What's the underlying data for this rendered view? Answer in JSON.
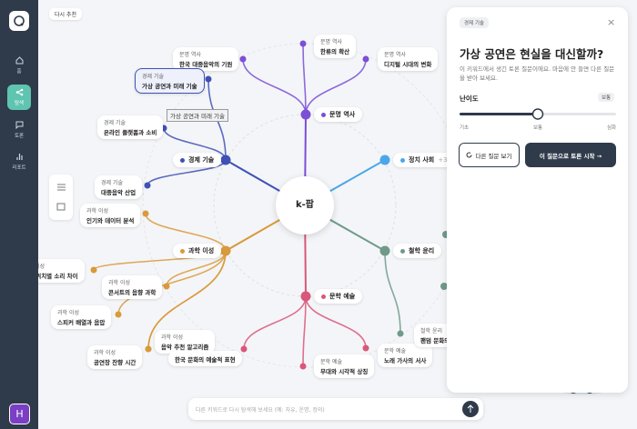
{
  "sidebar": {
    "items": [
      "홈",
      "탐색",
      "토론",
      "리포트"
    ],
    "avatar": "H"
  },
  "toolbar": {
    "recommend": "다시 추천"
  },
  "map": {
    "center": "k-팝",
    "branches": [
      "문명 역사",
      "정치 사회",
      "철학 윤리",
      "문학 예술",
      "과학 이성",
      "경제 기술"
    ],
    "more": "+3",
    "tooltip": "가상 공연과 미래 기술",
    "leaves": [
      {
        "category": "문명 역사",
        "title": "한국 대중음악의 기원"
      },
      {
        "category": "문명 역사",
        "title": "한류의 확산"
      },
      {
        "category": "문명 역사",
        "title": "디지털 시대의 변화"
      },
      {
        "category": "경제 기술",
        "title": "가상 공연과 미래 기술"
      },
      {
        "category": "경제 기술",
        "title": "온라인 플랫폼과 소비"
      },
      {
        "category": "경제 기술",
        "title": "대중음악 산업"
      },
      {
        "category": "과학 이성",
        "title": "인기와 데이터 분석"
      },
      {
        "category": "과학 이성",
        "title": "녹음 위치별 소리 차이"
      },
      {
        "category": "과학 이성",
        "title": "콘서트의 음향 과학"
      },
      {
        "category": "과학 이성",
        "title": "스피커 배열과 음압"
      },
      {
        "category": "과학 이성",
        "title": "음악 추천 알고리즘"
      },
      {
        "category": "과학 이성",
        "title": "공연장 잔향 시간"
      },
      {
        "title": "한국 문화의 예술적 표현"
      },
      {
        "category": "문학 예술",
        "title": "무대와 시각적 상징"
      },
      {
        "category": "문학 예술",
        "title": "노래 가사의 서사"
      },
      {
        "category": "철학 윤리",
        "title": "팬덤 문화의"
      }
    ]
  },
  "panel": {
    "chip": "경제 기술",
    "close": "×",
    "title": "가상 공연은 현실을 대신할까?",
    "description": "이 키워드에서 생긴 토론 질문이에요. 마음에 안 들면 다른 질문을 받아 보세요.",
    "difficulty": "난이도",
    "level": "보통",
    "scale": [
      "기초",
      "보통",
      "심화"
    ],
    "other": "다른 질문 보기",
    "start": "이 질문으로 토론 시작 →"
  },
  "search": {
    "placeholder": "다른 키워드로 다시 탐색해 보세요 (예: 자유, 운명, 정의)"
  }
}
